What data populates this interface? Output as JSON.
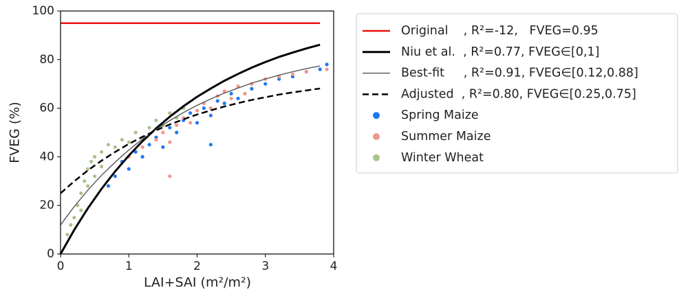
{
  "chart_data": {
    "type": "scatter",
    "x_label": "LAI+SAI (m²/m²)",
    "y_label": "FVEG (%)",
    "xlim": [
      0,
      4
    ],
    "ylim": [
      0,
      100
    ],
    "xticks": [
      0,
      1,
      2,
      3,
      4
    ],
    "yticks": [
      0,
      20,
      40,
      60,
      80,
      100
    ],
    "series": [
      {
        "name": "Original    , R²=-12,   FVEG=0.95",
        "color": "#ee1111",
        "line_style": "solid",
        "line_width": 2.5,
        "x": [
          0,
          3.8
        ],
        "values": [
          95,
          95
        ]
      },
      {
        "name": "Niu et al.  , R²=0.77, FVEG∈[0,1]",
        "color": "#000000",
        "line_style": "solid",
        "line_width": 3,
        "x": [
          0,
          0.2,
          0.4,
          0.6,
          0.8,
          1.0,
          1.2,
          1.4,
          1.6,
          1.8,
          2.0,
          2.2,
          2.4,
          2.6,
          2.8,
          3.0,
          3.2,
          3.4,
          3.6,
          3.8
        ],
        "values": [
          0,
          9.9,
          18.8,
          26.8,
          34.0,
          40.5,
          46.4,
          51.7,
          56.5,
          60.8,
          64.7,
          68.1,
          71.3,
          74.1,
          76.7,
          79.0,
          81.1,
          82.9,
          84.6,
          86.1
        ]
      },
      {
        "name": "Best-fit     , R²=0.91, FVEG∈[0.12,0.88]",
        "color": "#555555",
        "line_style": "solid",
        "line_width": 1.4,
        "x": [
          0,
          0.2,
          0.4,
          0.6,
          0.8,
          1.0,
          1.2,
          1.4,
          1.6,
          1.8,
          2.0,
          2.2,
          2.4,
          2.6,
          2.8,
          3.0,
          3.2,
          3.4,
          3.6,
          3.8
        ],
        "values": [
          12,
          19.5,
          26.3,
          32.4,
          37.8,
          42.8,
          47.3,
          51.3,
          54.9,
          58.2,
          61.2,
          63.8,
          66.2,
          68.3,
          70.3,
          72.0,
          73.6,
          75.0,
          76.3,
          77.4
        ]
      },
      {
        "name": "Adjusted  , R²=0.80, FVEG∈[0.25,0.75]",
        "color": "#000000",
        "line_style": "dashed",
        "line_width": 2.5,
        "x": [
          0,
          0.2,
          0.4,
          0.6,
          0.8,
          1.0,
          1.2,
          1.4,
          1.6,
          1.8,
          2.0,
          2.2,
          2.4,
          2.6,
          2.8,
          3.0,
          3.2,
          3.4,
          3.6,
          3.8
        ],
        "values": [
          25,
          29.9,
          34.4,
          38.4,
          42.0,
          45.3,
          48.2,
          50.9,
          53.3,
          55.4,
          57.4,
          59.1,
          60.7,
          62.1,
          63.4,
          64.5,
          65.6,
          66.5,
          67.3,
          68.1
        ]
      },
      {
        "name": "Spring Maize",
        "color": "#1f77f4",
        "marker": "dot",
        "x": [
          0.7,
          0.8,
          0.9,
          1.0,
          1.1,
          1.2,
          1.3,
          1.4,
          1.5,
          1.6,
          1.7,
          1.8,
          1.9,
          2.0,
          2.1,
          2.2,
          2.3,
          2.4,
          2.5,
          2.6,
          2.8,
          3.0,
          3.2,
          3.4,
          3.6,
          3.8,
          3.9,
          2.2
        ],
        "values": [
          28,
          32,
          38,
          35,
          42,
          40,
          45,
          48,
          44,
          52,
          50,
          55,
          58,
          54,
          60,
          57,
          63,
          62,
          66,
          64,
          68,
          70,
          72,
          73,
          75,
          76,
          78,
          45
        ]
      },
      {
        "name": "Summer Maize",
        "color": "#f0968a",
        "marker": "dot",
        "x": [
          1.0,
          1.2,
          1.4,
          1.5,
          1.6,
          1.7,
          1.8,
          1.9,
          2.0,
          2.1,
          2.2,
          2.3,
          2.4,
          2.5,
          2.6,
          2.7,
          2.8,
          3.0,
          3.2,
          3.4,
          3.6,
          3.9,
          1.6
        ],
        "values": [
          40,
          44,
          47,
          50,
          46,
          53,
          56,
          54,
          59,
          62,
          60,
          65,
          67,
          64,
          69,
          66,
          70,
          72,
          73,
          74,
          75,
          76,
          32
        ]
      },
      {
        "name": "Winter Wheat",
        "color": "#a9c48c",
        "marker": "dot",
        "x": [
          0.1,
          0.15,
          0.2,
          0.25,
          0.3,
          0.3,
          0.35,
          0.4,
          0.4,
          0.45,
          0.5,
          0.5,
          0.6,
          0.6,
          0.7,
          0.8,
          0.9,
          1.0,
          1.1,
          1.2,
          1.3,
          1.4,
          1.5,
          1.6,
          1.7,
          1.8
        ],
        "values": [
          8,
          12,
          15,
          20,
          25,
          18,
          30,
          28,
          35,
          38,
          32,
          40,
          42,
          36,
          45,
          44,
          47,
          46,
          50,
          48,
          52,
          55,
          53,
          58,
          56,
          60
        ]
      }
    ]
  }
}
